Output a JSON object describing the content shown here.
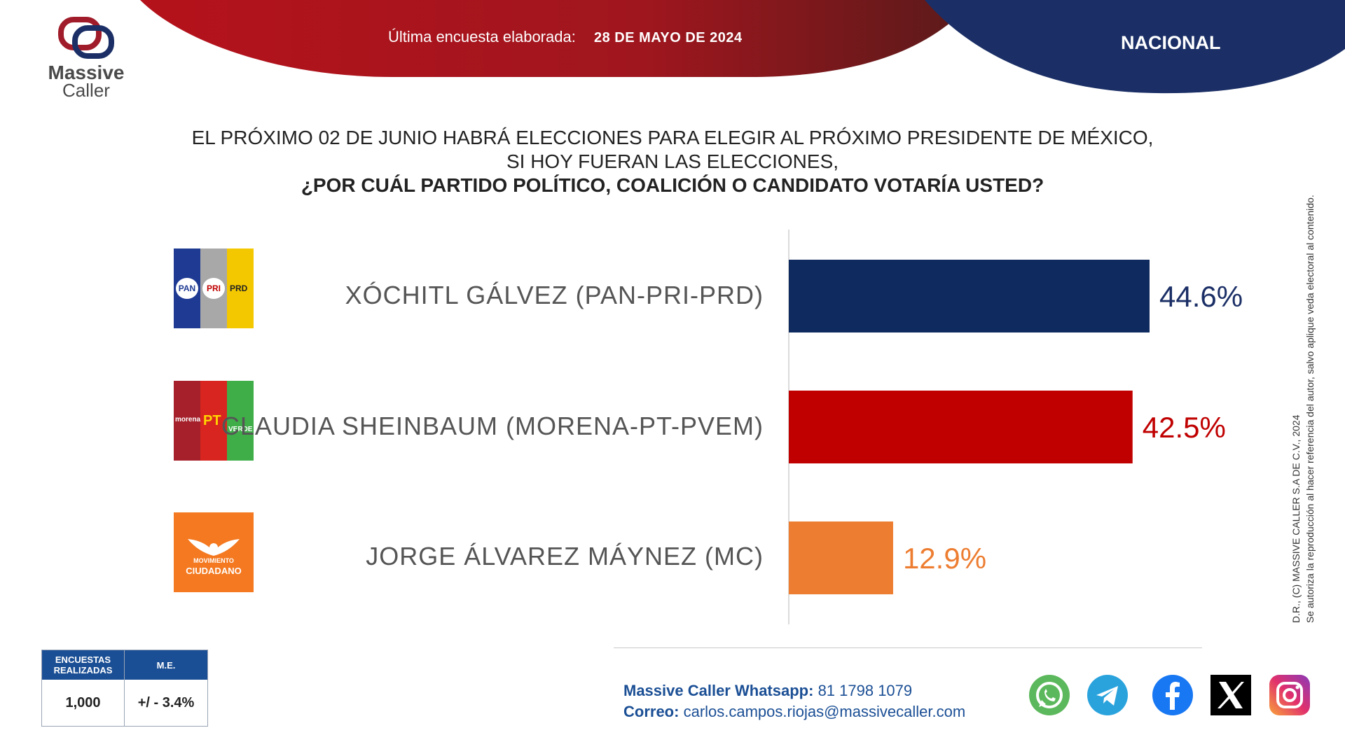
{
  "header": {
    "survey_label": "Última encuesta elaborada:",
    "survey_date": "28 DE MAYO DE 2024",
    "scope": "NACIONAL"
  },
  "logo": {
    "brand_line1": "Massive",
    "brand_line2": "Caller"
  },
  "question": {
    "line1": "EL PRÓXIMO 02 DE JUNIO HABRÁ ELECCIONES PARA ELEGIR AL PRÓXIMO PRESIDENTE DE MÉXICO,",
    "line2": "SI HOY FUERAN LAS ELECCIONES,",
    "line3": "¿POR CUÁL PARTIDO POLÍTICO, COALICIÓN O CANDIDATO VOTARÍA USTED?"
  },
  "chart_data": {
    "type": "bar",
    "orientation": "horizontal",
    "categories": [
      "XÓCHITL GÁLVEZ (PAN-PRI-PRD)",
      "CLAUDIA SHEINBAUM (MORENA-PT-PVEM)",
      "JORGE ÁLVAREZ MÁYNEZ (MC)"
    ],
    "values": [
      44.6,
      42.5,
      12.9
    ],
    "data_labels": [
      "44.6%",
      "42.5%",
      "12.9%"
    ],
    "colors": [
      "#0f2a5e",
      "#c00000",
      "#ed7d31"
    ],
    "xlim": [
      0,
      50
    ],
    "grid": false
  },
  "party_logos": {
    "pan": "PAN",
    "pri": "PRI",
    "prd": "PRD",
    "morena": "morena",
    "pt": "PT",
    "verde": "VERDE",
    "mc_line1": "MOVIMIENTO",
    "mc_line2": "CIUDADANO"
  },
  "stats": {
    "col1_header": "ENCUESTAS REALIZADAS",
    "col2_header": "M.E.",
    "col1_value": "1,000",
    "col2_value": "+/ - 3.4%"
  },
  "contact": {
    "whatsapp_label": "Massive Caller Whatsapp:",
    "whatsapp_value": "81 1798 1079",
    "email_label": "Correo:",
    "email_value": "carlos.campos.riojas@massivecaller.com"
  },
  "social": [
    "whatsapp-icon",
    "telegram-icon",
    "facebook-icon",
    "x-icon",
    "instagram-icon"
  ],
  "disclaimer": {
    "line1": "D.R., (C) MASSIVE CALLER S.A DE C.V., 2024",
    "line2": "Se autoriza la reproducción al hacer referencia del autor, salvo aplique veda electoral al contenido."
  },
  "colors": {
    "header_red": "#b5121b",
    "header_navy": "#1b2f66",
    "brand_blue": "#1b4f95"
  }
}
